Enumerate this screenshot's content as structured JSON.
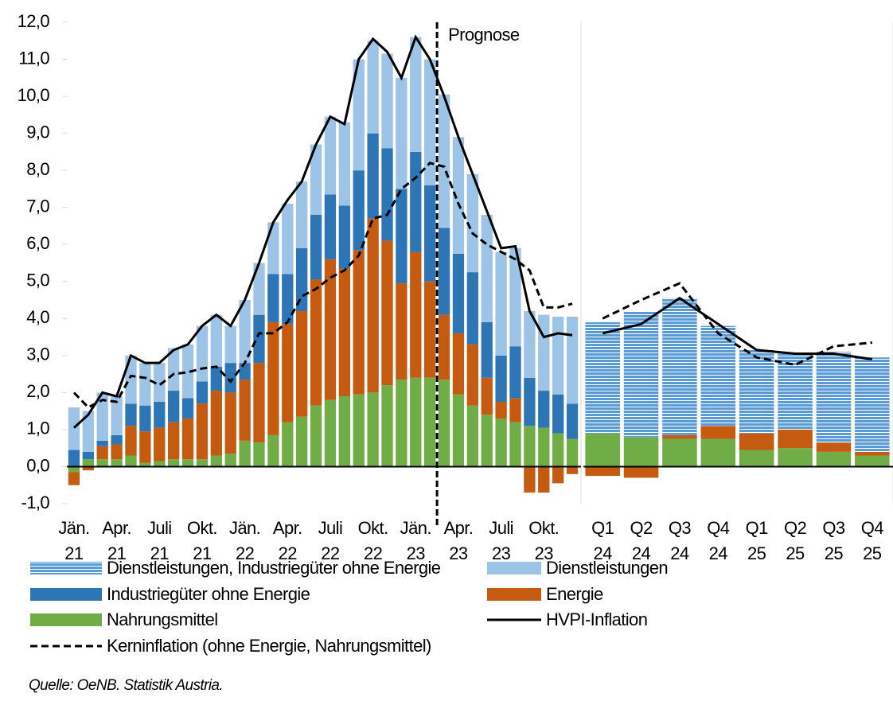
{
  "chart_data": [
    {
      "type": "bar",
      "stacked": true,
      "categories": [
        "Jän. 21",
        null,
        null,
        "Apr. 21",
        null,
        null,
        "Juli 21",
        null,
        null,
        "Okt. 21",
        null,
        null,
        "Jän. 22",
        null,
        null,
        "Apr. 22",
        null,
        null,
        "Juli 22",
        null,
        null,
        "Okt. 22",
        null,
        null,
        "Jän. 23",
        null,
        null,
        "Apr. 23",
        null,
        null,
        "Juli 23",
        null,
        null,
        "Okt. 23",
        null,
        null
      ],
      "ylim": [
        -1,
        12
      ],
      "yticks": [
        {
          "value": -1,
          "label": "-1,0"
        },
        {
          "value": 0,
          "label": "0,0"
        },
        {
          "value": 1,
          "label": "1,0"
        },
        {
          "value": 2,
          "label": "2,0"
        },
        {
          "value": 3,
          "label": "3,0"
        },
        {
          "value": 4,
          "label": "4,0"
        },
        {
          "value": 5,
          "label": "5,0"
        },
        {
          "value": 6,
          "label": "6,0"
        },
        {
          "value": 7,
          "label": "7,0"
        },
        {
          "value": 8,
          "label": "8,0"
        },
        {
          "value": 9,
          "label": "9,0"
        },
        {
          "value": 10,
          "label": "10,0"
        },
        {
          "value": 11,
          "label": "11,0"
        },
        {
          "value": 12,
          "label": "12,0"
        }
      ],
      "annotation": "Prognose",
      "series": [
        {
          "name": "Nahrungsmittel",
          "color": "#70ad47",
          "values": [
            -0.15,
            0.2,
            0.2,
            0.2,
            0.3,
            0.1,
            0.15,
            0.2,
            0.2,
            0.2,
            0.3,
            0.35,
            0.7,
            0.65,
            0.85,
            1.2,
            1.35,
            1.65,
            1.8,
            1.9,
            1.95,
            2.0,
            2.2,
            2.35,
            2.4,
            2.4,
            2.35,
            1.95,
            1.65,
            1.4,
            1.3,
            1.2,
            1.1,
            1.05,
            0.9,
            0.75
          ]
        },
        {
          "name": "Energie",
          "color": "#c55a11",
          "values": [
            -0.35,
            -0.1,
            0.35,
            0.4,
            0.8,
            0.85,
            0.9,
            1.0,
            1.1,
            1.5,
            1.75,
            1.65,
            1.65,
            2.15,
            3.05,
            2.65,
            2.85,
            3.4,
            3.8,
            3.45,
            3.9,
            4.7,
            3.9,
            2.6,
            3.4,
            2.6,
            1.75,
            1.65,
            1.65,
            1.0,
            0.45,
            0.65,
            -0.7,
            -0.7,
            -0.45,
            -0.2
          ]
        },
        {
          "name": "Industriegüter ohne Energie",
          "color": "#2e75b6",
          "values": [
            0.45,
            0.2,
            0.15,
            0.25,
            0.6,
            0.7,
            0.7,
            0.85,
            0.55,
            0.6,
            0.65,
            0.8,
            0.45,
            1.3,
            1.3,
            1.35,
            1.7,
            1.75,
            1.75,
            1.7,
            2.15,
            2.3,
            2.5,
            2.55,
            2.7,
            2.6,
            2.35,
            2.15,
            1.95,
            1.5,
            1.25,
            1.4,
            1.3,
            1.0,
            1.05,
            0.95
          ]
        },
        {
          "name": "Dienstleistungen",
          "color": "#9dc3e6",
          "values": [
            1.15,
            1.1,
            1.3,
            1.05,
            1.3,
            1.15,
            1.05,
            1.15,
            1.45,
            1.5,
            1.4,
            1.0,
            1.7,
            1.4,
            1.4,
            1.9,
            1.8,
            1.9,
            2.1,
            2.25,
            3.0,
            2.5,
            2.55,
            3.0,
            3.1,
            3.4,
            3.6,
            3.15,
            2.65,
            2.9,
            2.8,
            2.65,
            1.8,
            2.05,
            2.1,
            2.35
          ]
        },
        {
          "name": "HVPI-Inflation",
          "kind": "line",
          "color": "#000000",
          "values": [
            1.05,
            1.4,
            2.0,
            1.9,
            3.0,
            2.8,
            2.8,
            3.15,
            3.3,
            3.8,
            4.1,
            3.8,
            4.5,
            5.5,
            6.6,
            7.2,
            7.7,
            8.7,
            9.45,
            9.25,
            11.0,
            11.55,
            11.2,
            10.5,
            11.6,
            11.0,
            10.0,
            8.9,
            7.9,
            6.9,
            5.9,
            5.95,
            4.2,
            3.5,
            3.6,
            3.55
          ]
        },
        {
          "name": "Kerninflation (ohne Energie, Nahrungsmittel)",
          "kind": "line",
          "dash": true,
          "color": "#000000",
          "values": [
            2.0,
            1.6,
            1.8,
            1.75,
            2.45,
            2.4,
            2.2,
            2.5,
            2.55,
            2.65,
            2.7,
            2.3,
            2.8,
            3.6,
            3.6,
            3.9,
            4.6,
            4.8,
            5.1,
            5.3,
            5.7,
            6.7,
            6.8,
            7.5,
            7.8,
            8.2,
            8.1,
            7.1,
            6.3,
            6.0,
            5.8,
            5.6,
            5.3,
            4.3,
            4.3,
            4.4
          ]
        }
      ]
    },
    {
      "type": "bar",
      "stacked": true,
      "categories": [
        "Q1 24",
        "Q2 24",
        "Q3 24",
        "Q4 24",
        "Q1 25",
        "Q2 25",
        "Q3 25",
        "Q4 25"
      ],
      "ylim": [
        -1,
        12
      ],
      "series": [
        {
          "color": "#70ad47",
          "values": [
            0.9,
            0.8,
            0.75,
            0.75,
            0.45,
            0.5,
            0.4,
            0.3
          ]
        },
        {
          "color": "#c55a11",
          "values": [
            -0.25,
            -0.3,
            0.1,
            0.35,
            0.45,
            0.5,
            0.25,
            0.1
          ]
        },
        {
          "name": "Dienstleistungen, Industriegüter ohne Energie",
          "color": "#5b9bd5",
          "pattern": "stripes",
          "values": [
            3.0,
            3.4,
            3.7,
            2.7,
            2.25,
            2.05,
            2.45,
            2.55
          ]
        },
        {
          "kind": "line",
          "color": "#000000",
          "values": [
            3.6,
            3.85,
            4.55,
            3.85,
            3.15,
            3.05,
            3.05,
            2.9
          ]
        },
        {
          "kind": "line",
          "dash": true,
          "color": "#000000",
          "values": [
            4.0,
            4.5,
            4.95,
            3.6,
            2.95,
            2.75,
            3.25,
            3.35
          ]
        }
      ]
    }
  ],
  "source": "Quelle: OeNB. Statistik Austria."
}
